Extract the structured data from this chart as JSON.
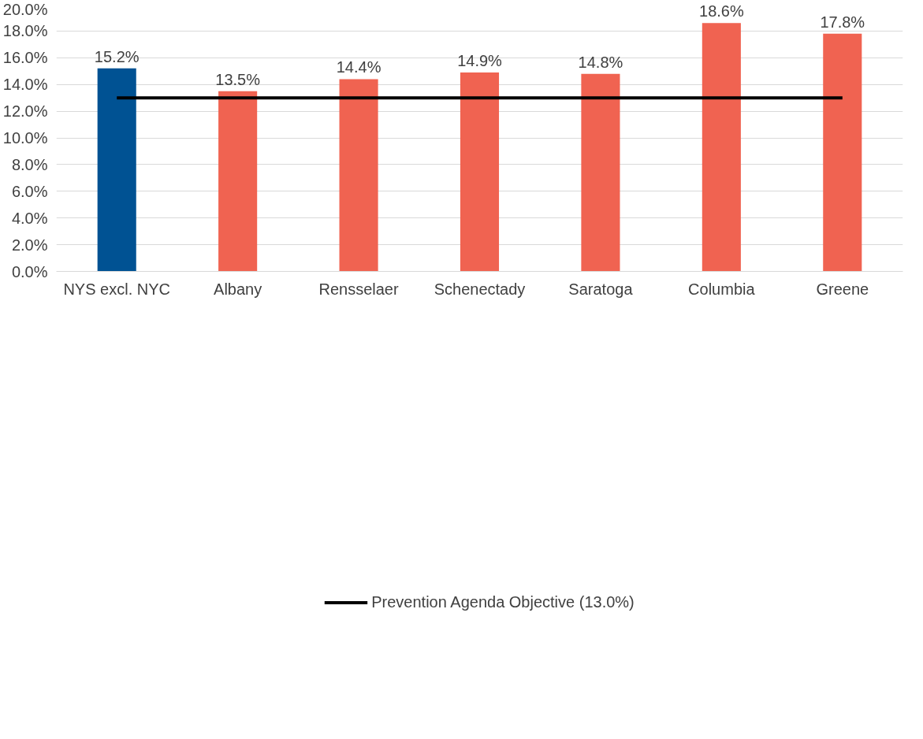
{
  "chart_data": {
    "type": "bar",
    "categories": [
      "NYS excl. NYC",
      "Albany",
      "Rensselaer",
      "Schenectady",
      "Saratoga",
      "Columbia",
      "Greene"
    ],
    "values": [
      15.2,
      13.5,
      14.4,
      14.9,
      14.8,
      18.6,
      17.8
    ],
    "colors": [
      "#005293",
      "#f06351",
      "#f06351",
      "#f06351",
      "#f06351",
      "#f06351",
      "#f06351"
    ],
    "value_labels": [
      "15.2%",
      "13.5%",
      "14.4%",
      "14.9%",
      "14.8%",
      "18.6%",
      "17.8%"
    ],
    "ylim": [
      0,
      20
    ],
    "yticks": [
      {
        "value": 0,
        "label": "0.0%"
      },
      {
        "value": 2,
        "label": "2.0%"
      },
      {
        "value": 4,
        "label": "4.0%"
      },
      {
        "value": 6,
        "label": "6.0%"
      },
      {
        "value": 8,
        "label": "8.0%"
      },
      {
        "value": 10,
        "label": "10.0%"
      },
      {
        "value": 12,
        "label": "12.0%"
      },
      {
        "value": 14,
        "label": "14.0%"
      },
      {
        "value": 16,
        "label": "16.0%"
      },
      {
        "value": 18,
        "label": "18.0%"
      },
      {
        "value": 20,
        "label": "20.0%"
      }
    ],
    "grid": "y",
    "ref_lines": [
      {
        "axis": "y",
        "value": 13,
        "label": "Prevention Agenda Objective (13.0%)",
        "color": "#000000"
      }
    ],
    "legend": "bottom"
  }
}
